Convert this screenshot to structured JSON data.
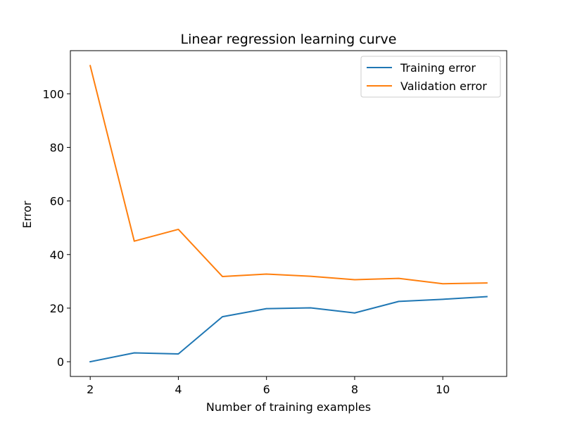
{
  "chart_data": {
    "type": "line",
    "title": "Linear regression learning curve",
    "xlabel": "Number of training examples",
    "ylabel": "Error",
    "xlim": [
      1.55,
      11.45
    ],
    "ylim": [
      -5.5,
      116.1
    ],
    "xticks": [
      2,
      4,
      6,
      8,
      10
    ],
    "yticks": [
      0,
      20,
      40,
      60,
      80,
      100
    ],
    "grid": false,
    "legend_position": "top-right",
    "x": [
      2,
      3,
      4,
      5,
      6,
      7,
      8,
      9,
      10,
      11
    ],
    "series": [
      {
        "name": "Training error",
        "color": "#1f77b4",
        "values": [
          0.0,
          3.3,
          2.9,
          16.8,
          19.8,
          20.1,
          18.2,
          22.5,
          23.3,
          24.3
        ]
      },
      {
        "name": "Validation error",
        "color": "#ff7f0e",
        "values": [
          110.5,
          45.0,
          49.4,
          31.8,
          32.7,
          31.9,
          30.6,
          31.1,
          29.1,
          29.4
        ]
      }
    ]
  }
}
